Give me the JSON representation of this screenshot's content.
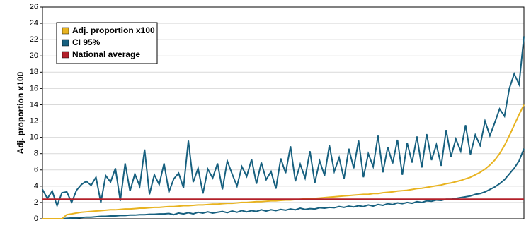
{
  "chart_data": {
    "type": "line",
    "ylabel": "Adj. proportion x100",
    "ylim": [
      0,
      26
    ],
    "yticks": [
      0,
      2,
      4,
      6,
      8,
      10,
      12,
      14,
      16,
      18,
      20,
      22,
      24,
      26
    ],
    "grid": true,
    "legend": "upper left",
    "series": [
      {
        "name": "Adj. proportion x100",
        "color": "#e8b320",
        "values": [
          0,
          0,
          0,
          0,
          0,
          0.5,
          0.6,
          0.7,
          0.8,
          0.85,
          0.9,
          0.95,
          1.0,
          1.05,
          1.1,
          1.1,
          1.15,
          1.2,
          1.2,
          1.25,
          1.3,
          1.3,
          1.35,
          1.4,
          1.4,
          1.45,
          1.5,
          1.5,
          1.55,
          1.6,
          1.6,
          1.65,
          1.7,
          1.7,
          1.75,
          1.8,
          1.8,
          1.85,
          1.9,
          1.9,
          1.95,
          2.0,
          2.0,
          2.05,
          2.1,
          2.1,
          2.15,
          2.2,
          2.2,
          2.25,
          2.3,
          2.3,
          2.35,
          2.4,
          2.45,
          2.5,
          2.5,
          2.55,
          2.6,
          2.65,
          2.7,
          2.75,
          2.8,
          2.85,
          2.9,
          2.95,
          3.0,
          3.0,
          3.1,
          3.1,
          3.2,
          3.25,
          3.3,
          3.4,
          3.45,
          3.5,
          3.6,
          3.7,
          3.75,
          3.85,
          3.95,
          4.05,
          4.15,
          4.3,
          4.4,
          4.55,
          4.7,
          4.9,
          5.1,
          5.4,
          5.7,
          6.1,
          6.6,
          7.2,
          8.0,
          9.0,
          10.2,
          11.5,
          12.8,
          14.0
        ]
      },
      {
        "name": "CI 95%",
        "color": "#17607f",
        "values": [
          3.6,
          2.5,
          3.4,
          1.6,
          3.2,
          3.3,
          2.0,
          3.5,
          4.2,
          4.6,
          4.1,
          5.1,
          2.0,
          5.3,
          4.5,
          6.2,
          2.2,
          6.8,
          3.4,
          5.5,
          4.0,
          8.5,
          3.0,
          5.4,
          4.2,
          6.8,
          3.3,
          4.9,
          5.6,
          3.8,
          9.6,
          4.5,
          6.2,
          3.1,
          6.1,
          5.0,
          6.8,
          3.6,
          7.1,
          5.5,
          4.0,
          6.4,
          5.2,
          7.3,
          4.3,
          6.9,
          4.8,
          5.8,
          3.7,
          7.4,
          5.6,
          8.9,
          4.6,
          6.7,
          5.0,
          8.3,
          4.4,
          7.1,
          5.3,
          9.0,
          5.8,
          7.5,
          4.9,
          8.6,
          6.2,
          9.6,
          5.1,
          8.0,
          6.4,
          10.2,
          5.7,
          8.8,
          6.8,
          9.7,
          5.4,
          9.3,
          6.9,
          10.1,
          6.3,
          10.4,
          7.2,
          9.1,
          6.5,
          10.9,
          7.6,
          9.8,
          8.3,
          11.5,
          7.9,
          10.3,
          9.0,
          12.0,
          10.2,
          11.8,
          13.5,
          12.6,
          16.0,
          17.8,
          16.5,
          22.4
        ],
        "lower": [
          0,
          0,
          0,
          0,
          0,
          0.05,
          0.1,
          0.1,
          0.15,
          0.2,
          0.2,
          0.25,
          0.3,
          0.3,
          0.35,
          0.35,
          0.4,
          0.4,
          0.45,
          0.45,
          0.5,
          0.5,
          0.55,
          0.55,
          0.6,
          0.6,
          0.65,
          0.5,
          0.7,
          0.6,
          0.75,
          0.6,
          0.8,
          0.7,
          0.85,
          0.7,
          0.8,
          0.9,
          0.75,
          0.95,
          0.8,
          1.0,
          0.85,
          1.0,
          0.9,
          1.1,
          0.95,
          1.1,
          1.0,
          1.15,
          1.05,
          1.2,
          1.1,
          1.3,
          1.15,
          1.25,
          1.2,
          1.35,
          1.3,
          1.4,
          1.35,
          1.5,
          1.4,
          1.55,
          1.45,
          1.6,
          1.5,
          1.7,
          1.55,
          1.75,
          1.65,
          1.85,
          1.75,
          1.95,
          1.85,
          2.0,
          1.9,
          2.1,
          2.0,
          2.2,
          2.15,
          2.3,
          2.25,
          2.4,
          2.4,
          2.5,
          2.6,
          2.7,
          2.8,
          3.0,
          3.1,
          3.3,
          3.6,
          3.9,
          4.3,
          4.8,
          5.5,
          6.2,
          7.1,
          8.6
        ]
      },
      {
        "name": "National average",
        "color": "#b3202a",
        "value": 2.4
      }
    ]
  }
}
